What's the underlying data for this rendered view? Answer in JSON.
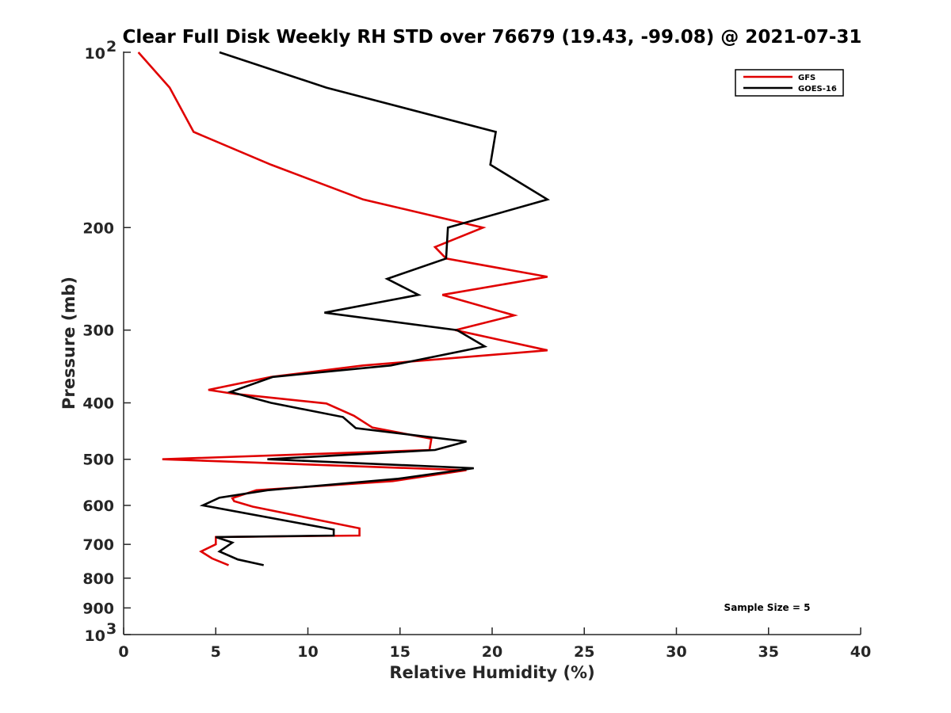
{
  "chart_data": {
    "type": "line",
    "title": "Clear Full Disk Weekly RH STD over 76679 (19.43, -99.08) @ 2021-07-31",
    "xlabel": "Relative Humidity (%)",
    "ylabel": "Pressure (mb)",
    "xlim": [
      0,
      40
    ],
    "ylim": [
      100,
      1000
    ],
    "y_scale": "log",
    "y_reversed": true,
    "x_ticks": [
      0,
      5,
      10,
      15,
      20,
      25,
      30,
      35,
      40
    ],
    "y_ticks": [
      {
        "value": 100,
        "base": "10",
        "exp": "2"
      },
      {
        "value": 200,
        "label": "200"
      },
      {
        "value": 300,
        "label": "300"
      },
      {
        "value": 400,
        "label": "400"
      },
      {
        "value": 500,
        "label": "500"
      },
      {
        "value": 600,
        "label": "600"
      },
      {
        "value": 700,
        "label": "700"
      },
      {
        "value": 800,
        "label": "800"
      },
      {
        "value": 900,
        "label": "900"
      },
      {
        "value": 1000,
        "base": "10",
        "exp": "3"
      }
    ],
    "grid": false,
    "legend_position": "top-right",
    "annotation": "Sample Size = 5",
    "series": [
      {
        "name": "GFS",
        "color": "#e00000",
        "points": [
          [
            0.8,
            100
          ],
          [
            2.5,
            115
          ],
          [
            3.8,
            137
          ],
          [
            8.0,
            156
          ],
          [
            13.0,
            179
          ],
          [
            19.5,
            200
          ],
          [
            16.9,
            216
          ],
          [
            17.5,
            226
          ],
          [
            23.0,
            243
          ],
          [
            17.3,
            261
          ],
          [
            21.2,
            283
          ],
          [
            18.0,
            300
          ],
          [
            23.0,
            325
          ],
          [
            13.0,
            345
          ],
          [
            8.0,
            361
          ],
          [
            4.6,
            380
          ],
          [
            6.0,
            386
          ],
          [
            11.0,
            401
          ],
          [
            12.5,
            421
          ],
          [
            13.5,
            441
          ],
          [
            16.7,
            461
          ],
          [
            16.6,
            482
          ],
          [
            2.1,
            500
          ],
          [
            18.6,
            522
          ],
          [
            14.6,
            545
          ],
          [
            7.2,
            565
          ],
          [
            5.9,
            583
          ],
          [
            6.0,
            590
          ],
          [
            7.0,
            603
          ],
          [
            12.8,
            657
          ],
          [
            12.8,
            676
          ],
          [
            5.0,
            680
          ],
          [
            5.0,
            700
          ],
          [
            4.2,
            720
          ],
          [
            4.8,
            740
          ],
          [
            5.7,
            760
          ]
        ]
      },
      {
        "name": "GOES-16",
        "color": "#000000",
        "points": [
          [
            5.2,
            100
          ],
          [
            11.0,
            115
          ],
          [
            20.2,
            137
          ],
          [
            19.9,
            156
          ],
          [
            23.0,
            179
          ],
          [
            17.6,
            200
          ],
          [
            17.5,
            226
          ],
          [
            14.3,
            245
          ],
          [
            16.0,
            261
          ],
          [
            10.9,
            280
          ],
          [
            18.1,
            300
          ],
          [
            19.6,
            320
          ],
          [
            14.5,
            345
          ],
          [
            8.1,
            361
          ],
          [
            5.8,
            383
          ],
          [
            8.0,
            400
          ],
          [
            11.9,
            423
          ],
          [
            12.6,
            442
          ],
          [
            18.6,
            466
          ],
          [
            16.9,
            482
          ],
          [
            7.8,
            500
          ],
          [
            19.0,
            518
          ],
          [
            14.9,
            540
          ],
          [
            7.8,
            565
          ],
          [
            5.2,
            582
          ],
          [
            4.3,
            600
          ],
          [
            11.4,
            660
          ],
          [
            11.4,
            676
          ],
          [
            5.0,
            680
          ],
          [
            5.9,
            695
          ],
          [
            5.2,
            720
          ],
          [
            6.2,
            743
          ],
          [
            7.6,
            760
          ]
        ]
      }
    ]
  }
}
